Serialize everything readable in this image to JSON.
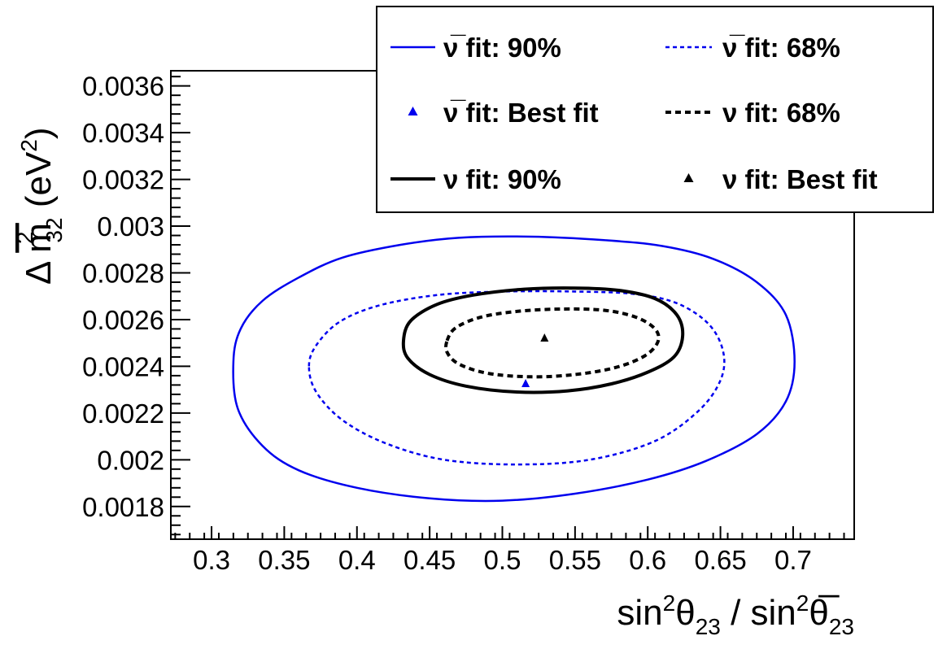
{
  "chart_data": {
    "type": "line",
    "subtype": "contour",
    "xlabel": {
      "main": "sin",
      "sup": "2",
      "theta": "θ",
      "sub": "23",
      "sep": " / ",
      "main2": "sin",
      "sup2": "2",
      "theta2": "θ̅",
      "sub2": "23"
    },
    "ylabel": {
      "delta": "Δ",
      "m": "m",
      "sup": "2",
      "sub": "32",
      "unit_open": "(eV",
      "unit_sup": "2",
      "unit_close": ")"
    },
    "xlim": [
      0.272,
      0.742
    ],
    "ylim": [
      0.00166,
      0.003665
    ],
    "xticks": [
      0.3,
      0.35,
      0.4,
      0.45,
      0.5,
      0.55,
      0.6,
      0.65,
      0.7
    ],
    "xtick_labels": [
      "0.3",
      "0.35",
      "0.4",
      "0.45",
      "0.5",
      "0.55",
      "0.6",
      "0.65",
      "0.7"
    ],
    "yticks": [
      0.0018,
      0.002,
      0.0022,
      0.0024,
      0.0026,
      0.0028,
      0.003,
      0.0032,
      0.0034,
      0.0036
    ],
    "ytick_labels": [
      "0.0018",
      "0.002",
      "0.0022",
      "0.0024",
      "0.0026",
      "0.0028",
      "0.003",
      "0.0032",
      "0.0034",
      "0.0036"
    ],
    "grid": false,
    "legend_position": "top-right",
    "series": [
      {
        "name": "ν̅ fit: 90%",
        "color": "#0000ee",
        "style": "solid",
        "width": "thin",
        "points": [
          [
            0.315,
            0.00242
          ],
          [
            0.32,
            0.00256
          ],
          [
            0.335,
            0.00268
          ],
          [
            0.36,
            0.00278
          ],
          [
            0.39,
            0.002865
          ],
          [
            0.43,
            0.00292
          ],
          [
            0.47,
            0.00295
          ],
          [
            0.52,
            0.002955
          ],
          [
            0.57,
            0.00294
          ],
          [
            0.61,
            0.002915
          ],
          [
            0.645,
            0.00286
          ],
          [
            0.675,
            0.00276
          ],
          [
            0.695,
            0.00262
          ],
          [
            0.701,
            0.00242
          ],
          [
            0.695,
            0.00225
          ],
          [
            0.675,
            0.00211
          ],
          [
            0.64,
            0.001995
          ],
          [
            0.6,
            0.001915
          ],
          [
            0.55,
            0.001855
          ],
          [
            0.5,
            0.001825
          ],
          [
            0.45,
            0.001835
          ],
          [
            0.4,
            0.00188
          ],
          [
            0.36,
            0.001955
          ],
          [
            0.335,
            0.00206
          ],
          [
            0.318,
            0.00222
          ],
          [
            0.315,
            0.00242
          ]
        ]
      },
      {
        "name": "ν̅ fit: 68%",
        "color": "#0000ee",
        "style": "dashed",
        "width": "thin",
        "points": [
          [
            0.367,
            0.0024
          ],
          [
            0.372,
            0.00249
          ],
          [
            0.388,
            0.00259
          ],
          [
            0.415,
            0.00266
          ],
          [
            0.455,
            0.002705
          ],
          [
            0.5,
            0.00272
          ],
          [
            0.55,
            0.00272
          ],
          [
            0.59,
            0.00271
          ],
          [
            0.62,
            0.00267
          ],
          [
            0.642,
            0.00258
          ],
          [
            0.652,
            0.00246
          ],
          [
            0.65,
            0.00234
          ],
          [
            0.635,
            0.00221
          ],
          [
            0.605,
            0.00208
          ],
          [
            0.56,
            0.002
          ],
          [
            0.51,
            0.00198
          ],
          [
            0.46,
            0.002
          ],
          [
            0.42,
            0.00207
          ],
          [
            0.39,
            0.00217
          ],
          [
            0.372,
            0.00229
          ],
          [
            0.367,
            0.0024
          ]
        ]
      },
      {
        "name": "ν fit: 90%",
        "color": "#000000",
        "style": "solid",
        "width": "thick",
        "points": [
          [
            0.432,
            0.00251
          ],
          [
            0.437,
            0.002595
          ],
          [
            0.455,
            0.002665
          ],
          [
            0.48,
            0.002705
          ],
          [
            0.515,
            0.00273
          ],
          [
            0.55,
            0.002735
          ],
          [
            0.58,
            0.002725
          ],
          [
            0.605,
            0.00269
          ],
          [
            0.62,
            0.00262
          ],
          [
            0.624,
            0.00253
          ],
          [
            0.618,
            0.00244
          ],
          [
            0.6,
            0.002375
          ],
          [
            0.575,
            0.002325
          ],
          [
            0.545,
            0.002295
          ],
          [
            0.51,
            0.00229
          ],
          [
            0.475,
            0.002315
          ],
          [
            0.45,
            0.002365
          ],
          [
            0.435,
            0.002435
          ],
          [
            0.432,
            0.00251
          ]
        ]
      },
      {
        "name": "ν fit: 68%",
        "color": "#000000",
        "style": "dashed",
        "width": "thick",
        "points": [
          [
            0.462,
            0.00251
          ],
          [
            0.468,
            0.002565
          ],
          [
            0.485,
            0.00261
          ],
          [
            0.51,
            0.002635
          ],
          [
            0.54,
            0.002645
          ],
          [
            0.57,
            0.00264
          ],
          [
            0.592,
            0.00261
          ],
          [
            0.605,
            0.00256
          ],
          [
            0.607,
            0.002505
          ],
          [
            0.598,
            0.002445
          ],
          [
            0.578,
            0.002395
          ],
          [
            0.55,
            0.002365
          ],
          [
            0.52,
            0.002355
          ],
          [
            0.49,
            0.00237
          ],
          [
            0.47,
            0.00241
          ],
          [
            0.462,
            0.00246
          ],
          [
            0.462,
            0.00251
          ]
        ]
      }
    ],
    "markers": [
      {
        "name": "ν̅ fit: Best fit",
        "color": "#0000ee",
        "x": 0.516,
        "y": 0.002325
      },
      {
        "name": "ν fit: Best fit",
        "color": "#000000",
        "x": 0.529,
        "y": 0.00252
      }
    ],
    "legend": [
      {
        "kind": "line",
        "color": "#0000ee",
        "style": "solid",
        "width": "thin",
        "label": "ν̅ fit: 90%"
      },
      {
        "kind": "line",
        "color": "#0000ee",
        "style": "dashed",
        "width": "thin",
        "label": "ν̅ fit: 68%"
      },
      {
        "kind": "marker",
        "color": "#0000ee",
        "label": "ν̅ fit: Best fit"
      },
      {
        "kind": "line",
        "color": "#000000",
        "style": "dashed",
        "width": "thick",
        "label": "ν fit: 68%"
      },
      {
        "kind": "line",
        "color": "#000000",
        "style": "solid",
        "width": "thick",
        "label": "ν fit: 90%"
      },
      {
        "kind": "marker",
        "color": "#000000",
        "label": "ν fit: Best fit"
      }
    ]
  }
}
